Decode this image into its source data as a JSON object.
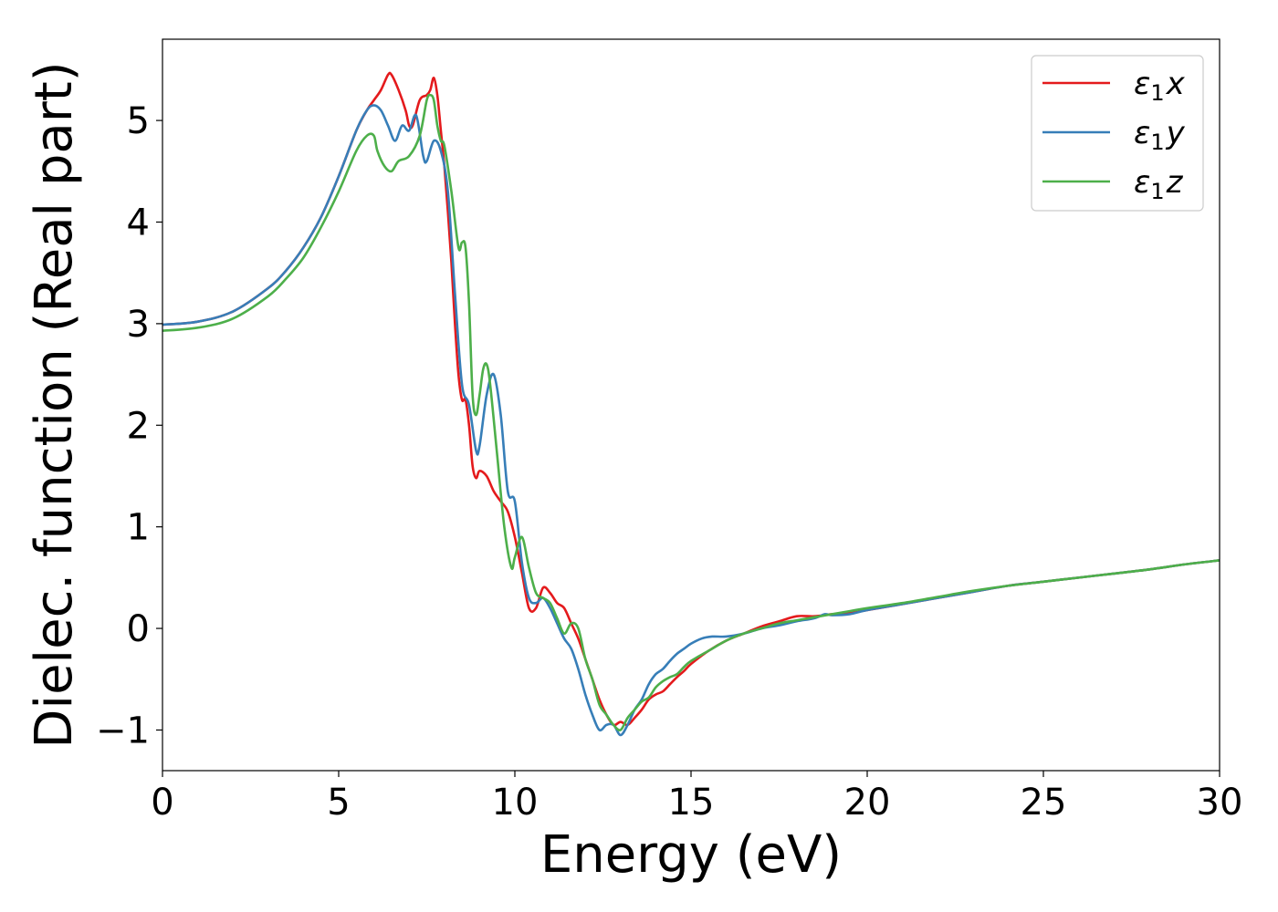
{
  "chart_data": {
    "type": "line",
    "title": "",
    "xlabel": "Energy (eV)",
    "ylabel": "Dielec. function (Real part)",
    "xlim": [
      0,
      30
    ],
    "ylim": [
      -1.4,
      5.8
    ],
    "xticks": [
      0,
      5,
      10,
      15,
      20,
      25,
      30
    ],
    "xtick_labels": [
      "0",
      "5",
      "10",
      "15",
      "20",
      "25",
      "30"
    ],
    "yticks": [
      -1,
      0,
      1,
      2,
      3,
      4,
      5
    ],
    "ytick_labels": [
      "−1",
      "0",
      "1",
      "2",
      "3",
      "4",
      "5"
    ],
    "grid": false,
    "legend_position": "top-right",
    "series": [
      {
        "name": "ε₁x",
        "legend_main": "ε",
        "legend_sub": "1",
        "legend_tail": "x",
        "color": "#e41a1c",
        "x": [
          0,
          1,
          2,
          3,
          3.5,
          4,
          4.5,
          5,
          5.5,
          5.8,
          6.0,
          6.2,
          6.4,
          6.5,
          6.7,
          6.9,
          7.0,
          7.1,
          7.3,
          7.5,
          7.6,
          7.7,
          7.8,
          7.9,
          8.0,
          8.1,
          8.2,
          8.3,
          8.4,
          8.5,
          8.6,
          8.7,
          8.8,
          8.9,
          9.0,
          9.2,
          9.4,
          9.6,
          9.8,
          10.0,
          10.2,
          10.4,
          10.6,
          10.8,
          11.0,
          11.2,
          11.4,
          11.6,
          11.8,
          12.0,
          12.2,
          12.4,
          12.6,
          12.8,
          13.0,
          13.2,
          13.4,
          13.6,
          13.8,
          14.0,
          14.2,
          14.4,
          14.6,
          14.8,
          15.0,
          15.5,
          16.0,
          16.5,
          17.0,
          17.5,
          18.0,
          18.5,
          19.0,
          19.5,
          20,
          21,
          22,
          23,
          24,
          25,
          26,
          27,
          28,
          29,
          30
        ],
        "y": [
          2.99,
          3.02,
          3.12,
          3.35,
          3.52,
          3.75,
          4.05,
          4.45,
          4.9,
          5.1,
          5.2,
          5.3,
          5.45,
          5.45,
          5.3,
          5.1,
          4.95,
          4.95,
          5.2,
          5.25,
          5.3,
          5.42,
          5.25,
          4.9,
          4.55,
          4.1,
          3.6,
          3.0,
          2.5,
          2.25,
          2.25,
          2.0,
          1.6,
          1.48,
          1.55,
          1.5,
          1.35,
          1.25,
          1.15,
          0.9,
          0.55,
          0.2,
          0.2,
          0.4,
          0.35,
          0.25,
          0.2,
          0.05,
          -0.1,
          -0.3,
          -0.5,
          -0.7,
          -0.85,
          -0.95,
          -0.92,
          -0.95,
          -0.88,
          -0.8,
          -0.7,
          -0.65,
          -0.62,
          -0.55,
          -0.48,
          -0.42,
          -0.35,
          -0.22,
          -0.12,
          -0.05,
          0.02,
          0.07,
          0.12,
          0.12,
          0.14,
          0.15,
          0.18,
          0.24,
          0.3,
          0.36,
          0.42,
          0.46,
          0.5,
          0.54,
          0.58,
          0.63,
          0.67
        ]
      },
      {
        "name": "ε₁y",
        "legend_main": "ε",
        "legend_sub": "1",
        "legend_tail": "y",
        "color": "#377eb8",
        "x": [
          0,
          1,
          2,
          3,
          3.5,
          4,
          4.5,
          5,
          5.5,
          5.8,
          6.0,
          6.2,
          6.4,
          6.6,
          6.8,
          7.0,
          7.2,
          7.4,
          7.5,
          7.7,
          7.9,
          8.1,
          8.3,
          8.5,
          8.7,
          8.9,
          9.0,
          9.2,
          9.4,
          9.6,
          9.8,
          10.0,
          10.2,
          10.4,
          10.6,
          10.8,
          11.0,
          11.2,
          11.4,
          11.6,
          11.8,
          12.0,
          12.2,
          12.4,
          12.6,
          12.8,
          13.0,
          13.2,
          13.4,
          13.6,
          13.8,
          14.0,
          14.2,
          14.4,
          14.6,
          14.8,
          15.0,
          15.3,
          15.6,
          16.0,
          16.5,
          17.0,
          17.5,
          18.0,
          18.5,
          18.8,
          19.0,
          19.5,
          20,
          21,
          22,
          23,
          24,
          25,
          26,
          27,
          28,
          29,
          30
        ],
        "y": [
          2.99,
          3.02,
          3.12,
          3.35,
          3.52,
          3.75,
          4.05,
          4.45,
          4.9,
          5.1,
          5.15,
          5.1,
          4.95,
          4.8,
          4.95,
          4.9,
          5.05,
          4.65,
          4.6,
          4.8,
          4.7,
          4.3,
          3.3,
          2.4,
          2.2,
          1.75,
          1.8,
          2.3,
          2.5,
          2.1,
          1.35,
          1.25,
          0.65,
          0.3,
          0.25,
          0.3,
          0.2,
          0.05,
          -0.1,
          -0.2,
          -0.4,
          -0.65,
          -0.85,
          -1.0,
          -0.95,
          -0.95,
          -1.05,
          -0.95,
          -0.8,
          -0.7,
          -0.55,
          -0.45,
          -0.4,
          -0.32,
          -0.25,
          -0.2,
          -0.15,
          -0.1,
          -0.08,
          -0.08,
          -0.05,
          0.0,
          0.03,
          0.07,
          0.1,
          0.14,
          0.13,
          0.14,
          0.18,
          0.24,
          0.3,
          0.36,
          0.42,
          0.46,
          0.5,
          0.54,
          0.58,
          0.63,
          0.67
        ]
      },
      {
        "name": "ε₁z",
        "legend_main": "ε",
        "legend_sub": "1",
        "legend_tail": "z",
        "color": "#4daf4a",
        "x": [
          0,
          1,
          2,
          3,
          3.5,
          4,
          4.5,
          5,
          5.5,
          5.8,
          6.0,
          6.1,
          6.3,
          6.5,
          6.7,
          7.0,
          7.3,
          7.5,
          7.6,
          7.7,
          7.8,
          7.9,
          8.0,
          8.2,
          8.4,
          8.5,
          8.6,
          8.7,
          8.8,
          8.9,
          9.0,
          9.1,
          9.2,
          9.3,
          9.5,
          9.7,
          9.9,
          10.0,
          10.2,
          10.4,
          10.6,
          10.8,
          11.0,
          11.2,
          11.4,
          11.6,
          11.8,
          12.0,
          12.2,
          12.4,
          12.6,
          12.8,
          13.0,
          13.2,
          13.4,
          13.6,
          13.8,
          14.0,
          14.2,
          14.4,
          14.6,
          14.8,
          15.0,
          15.5,
          16.0,
          16.5,
          17.0,
          17.5,
          18.0,
          18.5,
          19.0,
          19.5,
          20,
          21,
          22,
          23,
          24,
          25,
          26,
          27,
          28,
          29,
          30
        ],
        "y": [
          2.93,
          2.96,
          3.05,
          3.27,
          3.44,
          3.65,
          3.95,
          4.3,
          4.7,
          4.85,
          4.85,
          4.7,
          4.55,
          4.5,
          4.6,
          4.65,
          4.85,
          5.2,
          5.25,
          5.2,
          4.95,
          4.8,
          4.75,
          4.3,
          3.75,
          3.8,
          3.75,
          3.2,
          2.3,
          2.1,
          2.3,
          2.55,
          2.6,
          2.4,
          1.7,
          1.0,
          0.6,
          0.7,
          0.9,
          0.6,
          0.35,
          0.3,
          0.25,
          0.1,
          -0.05,
          0.05,
          0.0,
          -0.3,
          -0.5,
          -0.75,
          -0.85,
          -0.95,
          -1.0,
          -0.88,
          -0.8,
          -0.72,
          -0.68,
          -0.58,
          -0.52,
          -0.48,
          -0.45,
          -0.38,
          -0.32,
          -0.22,
          -0.12,
          -0.05,
          0.0,
          0.05,
          0.08,
          0.11,
          0.14,
          0.17,
          0.2,
          0.25,
          0.31,
          0.37,
          0.42,
          0.46,
          0.5,
          0.54,
          0.58,
          0.63,
          0.67
        ]
      }
    ]
  }
}
